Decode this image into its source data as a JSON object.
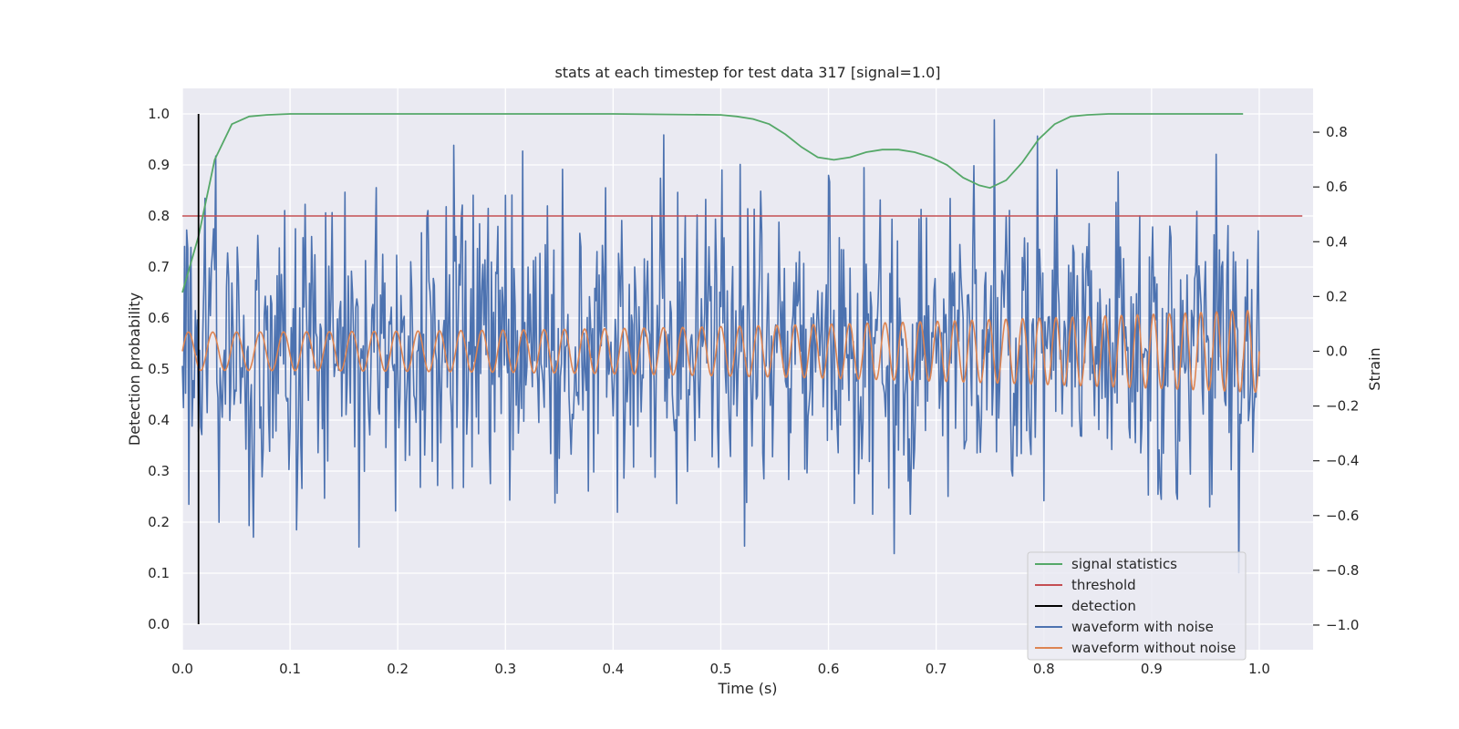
{
  "chart_data": {
    "type": "line",
    "title": "stats at each timestep for test data 317 [signal=1.0]",
    "xlabel": "Time (s)",
    "ylabel": "Detection probability",
    "ylabel_right": "Strain",
    "xlim": [
      0.0,
      1.05
    ],
    "ylim": [
      -0.05,
      1.05
    ],
    "ylim_right": [
      -1.09,
      0.96
    ],
    "xticks": [
      "0.0",
      "0.1",
      "0.2",
      "0.3",
      "0.4",
      "0.5",
      "0.6",
      "0.7",
      "0.8",
      "0.9",
      "1.0"
    ],
    "yticks": [
      "0.0",
      "0.1",
      "0.2",
      "0.3",
      "0.4",
      "0.5",
      "0.6",
      "0.7",
      "0.8",
      "0.9",
      "1.0"
    ],
    "yticks_right": [
      "−1.0",
      "−0.8",
      "−0.6",
      "−0.4",
      "−0.2",
      "0.0",
      "0.2",
      "0.4",
      "0.6",
      "0.8"
    ],
    "grid": true,
    "legend_position": "lower-right",
    "colors": {
      "signal_statistics": "#55a868",
      "threshold": "#c44e52",
      "detection": "#000000",
      "waveform_with_noise": "#4c72b0",
      "waveform_without_noise": "#dd8452",
      "plot_background": "#eaeaf2",
      "grid": "#ffffff"
    },
    "series": [
      {
        "name": "signal statistics",
        "axis": "left",
        "x": [
          0.0,
          0.015,
          0.03,
          0.046,
          0.062,
          0.078,
          0.1,
          0.2,
          0.3,
          0.4,
          0.5,
          0.515,
          0.53,
          0.545,
          0.56,
          0.575,
          0.59,
          0.605,
          0.62,
          0.635,
          0.65,
          0.665,
          0.68,
          0.695,
          0.71,
          0.725,
          0.74,
          0.75,
          0.765,
          0.78,
          0.795,
          0.81,
          0.825,
          0.84,
          0.86,
          0.9,
          0.95,
          0.985
        ],
        "y": [
          0.65,
          0.76,
          0.91,
          0.98,
          0.995,
          0.998,
          1.0,
          1.0,
          1.0,
          1.0,
          0.998,
          0.995,
          0.99,
          0.98,
          0.96,
          0.935,
          0.915,
          0.91,
          0.915,
          0.925,
          0.93,
          0.93,
          0.925,
          0.915,
          0.9,
          0.875,
          0.86,
          0.855,
          0.87,
          0.905,
          0.95,
          0.98,
          0.995,
          0.998,
          1.0,
          1.0,
          1.0,
          1.0
        ]
      },
      {
        "name": "threshold",
        "axis": "left",
        "x": [
          0.0,
          1.04
        ],
        "y": [
          0.8,
          0.8
        ]
      },
      {
        "name": "detection",
        "axis": "left",
        "x": [
          0.015,
          0.015
        ],
        "y": [
          0.0,
          1.0
        ]
      },
      {
        "name": "waveform with noise",
        "axis": "right",
        "description": "noisy strain, ~1000 samples, range about -1.0 to 0.88",
        "t_start": 0.0,
        "t_end": 1.0
      },
      {
        "name": "waveform without noise",
        "axis": "right",
        "description": "chirp: amplitude ~0.07 rising to ~0.15, frequency rising from ~44 Hz to ~70 Hz, centered at 0.0",
        "t_start": 0.0,
        "t_end": 1.0
      }
    ],
    "legend": [
      "signal statistics",
      "threshold",
      "detection",
      "waveform with noise",
      "waveform without noise"
    ]
  }
}
